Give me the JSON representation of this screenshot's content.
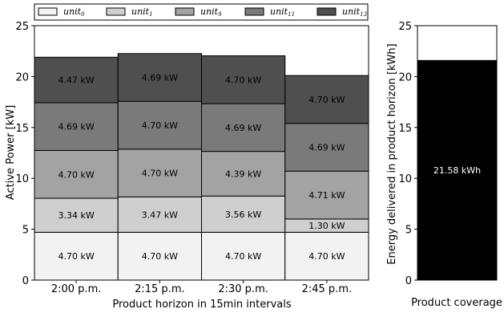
{
  "chart_data": [
    {
      "type": "bar",
      "stacked": true,
      "categories": [
        "2:00 p.m.",
        "2:15 p.m.",
        "2:30 p.m.",
        "2:45 p.m."
      ],
      "series": [
        {
          "name": "unit",
          "sub": "0",
          "color": "#f2f2f2",
          "values": [
            4.7,
            4.7,
            4.7,
            4.7
          ],
          "labels": [
            "4.70 kW",
            "4.70 kW",
            "4.70 kW",
            "4.70 kW"
          ]
        },
        {
          "name": "unit",
          "sub": "1",
          "color": "#cfcfcf",
          "values": [
            3.34,
            3.47,
            3.56,
            1.3
          ],
          "labels": [
            "3.34 kW",
            "3.47 kW",
            "3.56 kW",
            "1.30 kW"
          ]
        },
        {
          "name": "unit",
          "sub": "9",
          "color": "#a3a3a3",
          "values": [
            4.7,
            4.7,
            4.39,
            4.71
          ],
          "labels": [
            "4.70 kW",
            "4.70 kW",
            "4.39 kW",
            "4.71 kW"
          ]
        },
        {
          "name": "unit",
          "sub": "11",
          "color": "#7a7a7a",
          "values": [
            4.69,
            4.7,
            4.69,
            4.69
          ],
          "labels": [
            "4.69 kW",
            "4.70 kW",
            "4.69 kW",
            "4.69 kW"
          ]
        },
        {
          "name": "unit",
          "sub": "13",
          "color": "#4f4f4f",
          "values": [
            4.47,
            4.69,
            4.7,
            4.7
          ],
          "labels": [
            "4.47 kW",
            "4.69 kW",
            "4.70 kW",
            "4.70 kW"
          ]
        }
      ],
      "xlabel": "Product horizon in 15min intervals",
      "ylabel": "Active Power [kW]",
      "ylim": [
        0,
        25
      ],
      "yticks": [
        "0",
        "5",
        "10",
        "15",
        "20",
        "25"
      ],
      "legend_position": "top"
    },
    {
      "type": "bar",
      "categories": [
        ""
      ],
      "values": [
        21.58
      ],
      "value_label": "21.58 kWh",
      "fill_color": "#000000",
      "xlabel": "Product coverage",
      "ylabel": "Energy delivered in product horizon [kWh]",
      "ylim": [
        0,
        25
      ],
      "yticks": [
        "0",
        "5",
        "10",
        "15",
        "20",
        "25"
      ]
    }
  ]
}
